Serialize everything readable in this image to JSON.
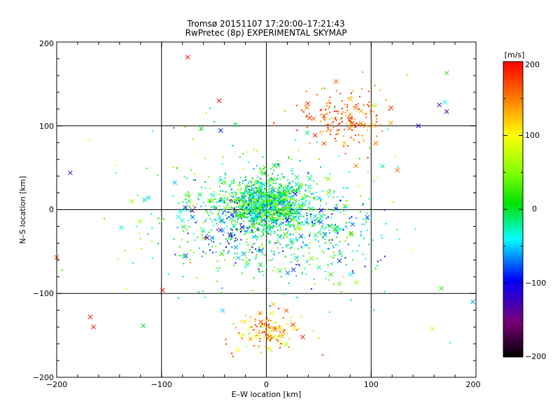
{
  "chart_data": {
    "type": "scatter",
    "title": "Tromsø 20151107 17:20:00–17:21:43",
    "subtitle": "RwPretec (8p) EXPERIMENTAL SKYMAP",
    "xlabel": "E–W location [km]",
    "ylabel": "N–S location [km]",
    "xlim": [
      -200,
      200
    ],
    "ylim": [
      -200,
      200
    ],
    "xticks": [
      "−200",
      "−100",
      "0",
      "100",
      "200"
    ],
    "yticks": [
      "−200",
      "−100",
      "0",
      "100",
      "200"
    ],
    "grid": true,
    "colorbar": {
      "label": "[m/s]",
      "range": [
        -200,
        200
      ],
      "ticks": [
        "−200",
        "−100",
        "0",
        "100",
        "200"
      ],
      "colormap": "rainbow (black–purple–blue–cyan–green–yellow–red)",
      "placement": "right"
    },
    "point_markers": [
      "dot (small)",
      "x (large)"
    ],
    "clusters": [
      {
        "x": 0,
        "y": 5,
        "spread": 22,
        "velocity_range": [
          -80,
          60
        ],
        "approx_count": 1400
      },
      {
        "x": 0,
        "y": -10,
        "spread": 55,
        "velocity_range": [
          -60,
          60
        ],
        "approx_count": 800
      },
      {
        "x": 0,
        "y": -145,
        "spread": 18,
        "velocity_range": [
          60,
          200
        ],
        "approx_count": 200
      },
      {
        "x": 75,
        "y": 110,
        "spread": 25,
        "velocity_range": [
          120,
          200
        ],
        "approx_count": 250
      },
      {
        "x": 60,
        "y": -30,
        "spread": 35,
        "velocity_range": [
          -120,
          0
        ],
        "approx_count": 150
      },
      {
        "x": -30,
        "y": -20,
        "spread": 30,
        "velocity_range": [
          -150,
          -60
        ],
        "approx_count": 120
      },
      {
        "x": 0,
        "y": 0,
        "spread": 130,
        "velocity_range": [
          -100,
          150
        ],
        "approx_count": 180
      }
    ],
    "highlighted_points": [
      {
        "x": 172,
        "y": 163,
        "v": 20
      },
      {
        "x": 170,
        "y": 128,
        "v": -40
      },
      {
        "x": 165,
        "y": 125,
        "v": -130
      },
      {
        "x": 172,
        "y": 117,
        "v": -140
      },
      {
        "x": -187,
        "y": 44,
        "v": -120
      },
      {
        "x": -200,
        "y": -57,
        "v": 180
      },
      {
        "x": -168,
        "y": -128,
        "v": 190
      },
      {
        "x": -165,
        "y": -140,
        "v": 190
      },
      {
        "x": -99,
        "y": -96,
        "v": 200
      },
      {
        "x": 197,
        "y": -110,
        "v": -60
      },
      {
        "x": 167,
        "y": -94,
        "v": 20
      },
      {
        "x": 145,
        "y": 100,
        "v": -110
      },
      {
        "x": 125,
        "y": 47,
        "v": 160
      },
      {
        "x": -45,
        "y": 130,
        "v": 200
      },
      {
        "x": -75,
        "y": 182,
        "v": 200
      }
    ]
  }
}
